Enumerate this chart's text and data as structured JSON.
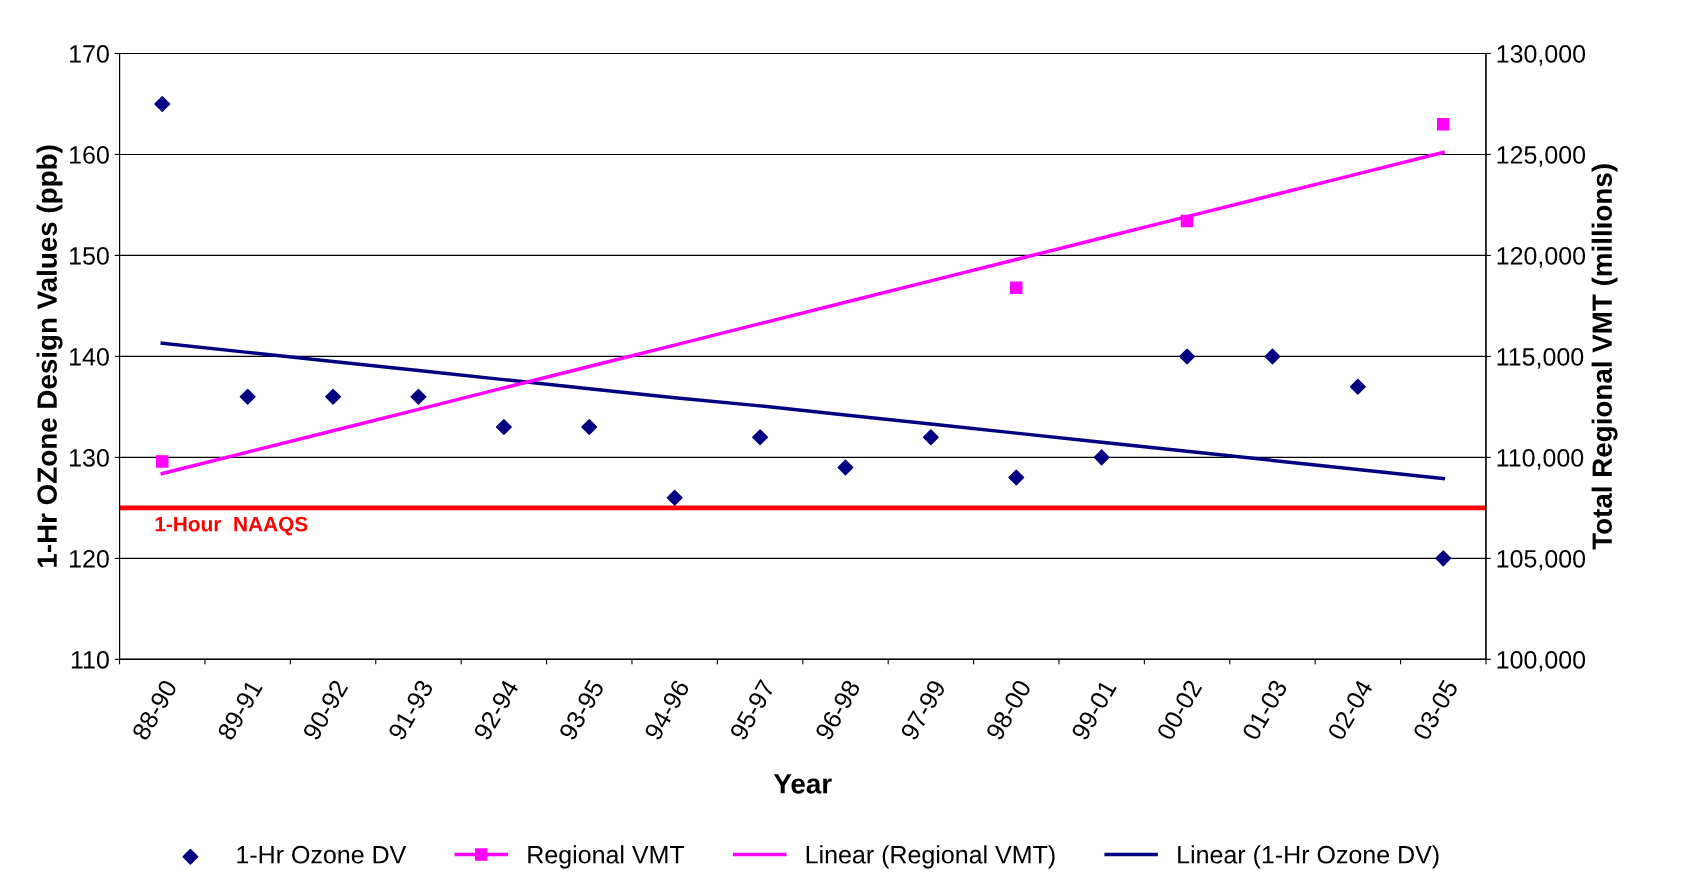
{
  "chart_data": {
    "type": "scatter",
    "xlabel": "Year",
    "ylabel": "1-Hr OZone Design Values (ppb)",
    "y2label": "Total Regional VMT (millions)",
    "categories": [
      "88-90",
      "89-91",
      "90-92",
      "91-93",
      "92-94",
      "93-95",
      "94-96",
      "95-97",
      "96-98",
      "97-99",
      "98-00",
      "99-01",
      "00-02",
      "01-03",
      "02-04",
      "03-05"
    ],
    "series": [
      {
        "name": "1-Hr Ozone DV",
        "marker": "diamond",
        "color": "#000080",
        "values": [
          165,
          136,
          136,
          136,
          133,
          133,
          126,
          132,
          129,
          132,
          128,
          130,
          140,
          140,
          137,
          120
        ]
      },
      {
        "name": "Regional VMT",
        "type": "line",
        "marker": "square",
        "axis": "y2",
        "color": "#ff00ff",
        "values": [
          109800,
          null,
          null,
          null,
          null,
          null,
          null,
          null,
          null,
          null,
          118400,
          null,
          121700,
          null,
          null,
          126500
        ]
      },
      {
        "name": "Linear (Regional VMT)",
        "type": "line",
        "marker": "none",
        "axis": "y2",
        "color": "#ff00ff",
        "values": [
          109200,
          110260,
          111320,
          112380,
          113440,
          114500,
          115560,
          116620,
          117680,
          118740,
          119800,
          120860,
          121920,
          122980,
          124040,
          125100
        ]
      },
      {
        "name": "Linear (1-Hr Ozone DV)",
        "type": "line",
        "marker": "none",
        "color": "#000080",
        "values": [
          141.3,
          140.4,
          139.5,
          138.6,
          137.7,
          136.8,
          135.9,
          135.1,
          134.2,
          133.3,
          132.4,
          131.5,
          130.6,
          129.7,
          128.8,
          127.9
        ]
      }
    ],
    "ylim": [
      110,
      170
    ],
    "yticks": [
      110,
      120,
      130,
      140,
      150,
      160,
      170
    ],
    "y2lim": [
      100000,
      130000
    ],
    "y2ticks": [
      {
        "value": 100000,
        "label": "100,000"
      },
      {
        "value": 105000,
        "label": "105,000"
      },
      {
        "value": 110000,
        "label": "110,000"
      },
      {
        "value": 115000,
        "label": "115,000"
      },
      {
        "value": 120000,
        "label": "120,000"
      },
      {
        "value": 125000,
        "label": "125,000"
      },
      {
        "value": 130000,
        "label": "130,000"
      }
    ],
    "ref_lines": [
      {
        "axis": "y",
        "value": 125,
        "label": "1-Hour  NAAQS",
        "color": "#ff0000"
      }
    ],
    "grid": "y",
    "legend": "bottom"
  }
}
